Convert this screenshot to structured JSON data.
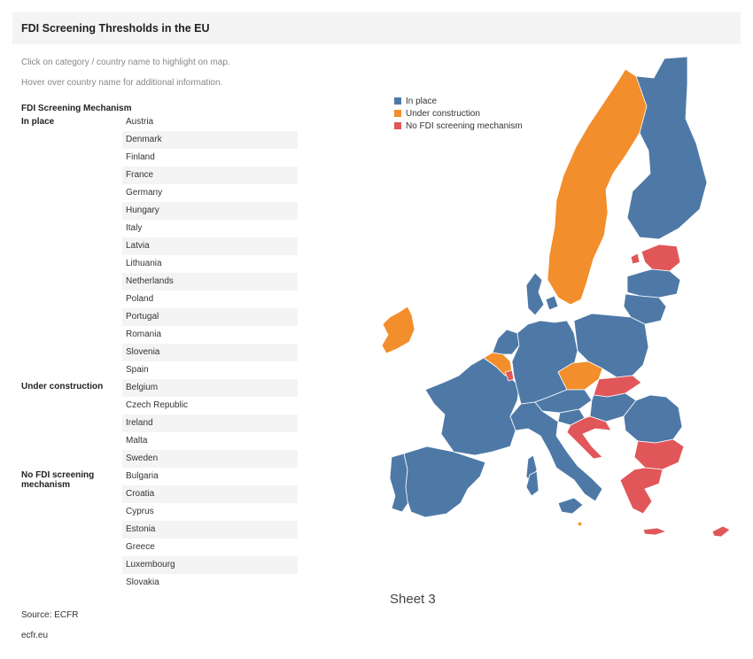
{
  "title": "FDI Screening Thresholds in the EU",
  "instructions": [
    "Click on category / country name to highlight on map.",
    "Hover over country name for additional information."
  ],
  "table_header": "FDI Screening Mechanism",
  "categories": {
    "in_place": "In place",
    "under_construction": "Under construction",
    "none": "No FDI screening mechanism"
  },
  "countries": {
    "in_place": [
      "Austria",
      "Denmark",
      "Finland",
      "France",
      "Germany",
      "Hungary",
      "Italy",
      "Latvia",
      "Lithuania",
      "Netherlands",
      "Poland",
      "Portugal",
      "Romania",
      "Slovenia",
      "Spain"
    ],
    "under_construction": [
      "Belgium",
      "Czech Republic",
      "Ireland",
      "Malta",
      "Sweden"
    ],
    "none": [
      "Bulgaria",
      "Croatia",
      "Cyprus",
      "Estonia",
      "Greece",
      "Luxembourg",
      "Slovakia"
    ]
  },
  "legend": [
    {
      "label": "In place",
      "color": "#4e79a7"
    },
    {
      "label": "Under construction",
      "color": "#f28e2b"
    },
    {
      "label": "No FDI screening mechanism",
      "color": "#e15759"
    }
  ],
  "colors": {
    "in_place": "#4e79a7",
    "under_construction": "#f28e2b",
    "none": "#e15759"
  },
  "sheet_label": "Sheet 3",
  "source": "Source: ECFR",
  "site": "ecfr.eu"
}
